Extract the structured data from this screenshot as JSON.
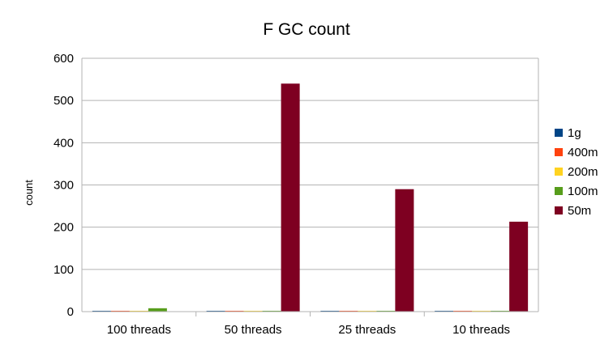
{
  "chart_data": {
    "type": "bar",
    "title": "F GC count",
    "xlabel": "",
    "ylabel": "count",
    "categories": [
      "100 threads",
      "50 threads",
      "25 threads",
      "10 threads"
    ],
    "ylim": [
      0,
      600
    ],
    "yticks": [
      0,
      100,
      200,
      300,
      400,
      500,
      600
    ],
    "grid": true,
    "legend_position": "right",
    "series": [
      {
        "name": "1g",
        "color": "#004586",
        "values": [
          2,
          2,
          2,
          2
        ]
      },
      {
        "name": "400m",
        "color": "#ff420e",
        "values": [
          2,
          2,
          2,
          2
        ]
      },
      {
        "name": "200m",
        "color": "#ffd320",
        "values": [
          2,
          2,
          2,
          2
        ]
      },
      {
        "name": "100m",
        "color": "#579d1c",
        "values": [
          8,
          2,
          2,
          2
        ]
      },
      {
        "name": "50m",
        "color": "#7e0021",
        "values": [
          0,
          540,
          290,
          213
        ]
      }
    ]
  }
}
